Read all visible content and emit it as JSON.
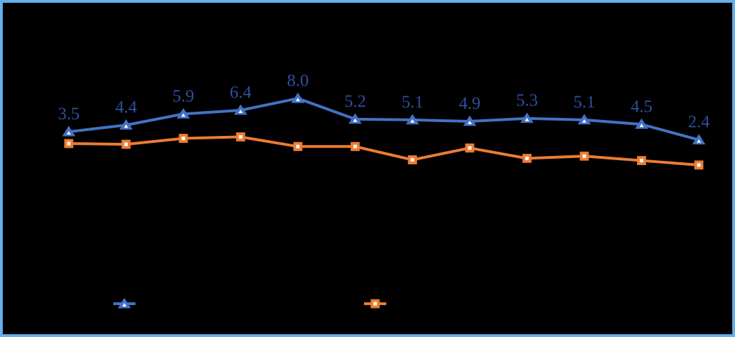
{
  "frame": {
    "background_color": "#000000",
    "border_color": "#64AFEE"
  },
  "chart_data": {
    "type": "line",
    "title": "",
    "xlabel": "",
    "ylabel": "",
    "x": [
      1,
      2,
      3,
      4,
      5,
      6,
      7,
      8,
      9,
      10,
      11,
      12
    ],
    "grid": false,
    "axes_visible": false,
    "legend_position": "bottom-center",
    "series": [
      {
        "name": "blue-triangle-series",
        "color": "#4472C4",
        "marker": "triangle",
        "marker_inner_color": "#FFFFFF",
        "label_color": "#2E509C",
        "values": [
          3.5,
          4.4,
          5.9,
          6.4,
          8.0,
          5.2,
          5.1,
          4.9,
          5.3,
          5.1,
          4.5,
          2.4
        ],
        "data_labels": [
          "3.5",
          "4.4",
          "5.9",
          "6.4",
          "8.0",
          "5.2",
          "5.1",
          "4.9",
          "5.3",
          "5.1",
          "4.5",
          "2.4"
        ]
      },
      {
        "name": "orange-square-series",
        "color": "#ED7D31",
        "marker": "square",
        "marker_inner_color": "#FFFFFF",
        "label_color": "",
        "values": [
          1.9,
          1.8,
          2.6,
          2.8,
          1.5,
          1.5,
          -0.3,
          1.3,
          -0.1,
          0.2,
          -0.4,
          -1.0
        ],
        "data_labels": []
      }
    ],
    "legend": {
      "entries": [
        {
          "marker": "triangle",
          "color": "#4472C4",
          "label": ""
        },
        {
          "marker": "square",
          "color": "#ED7D31",
          "label": ""
        }
      ]
    }
  }
}
